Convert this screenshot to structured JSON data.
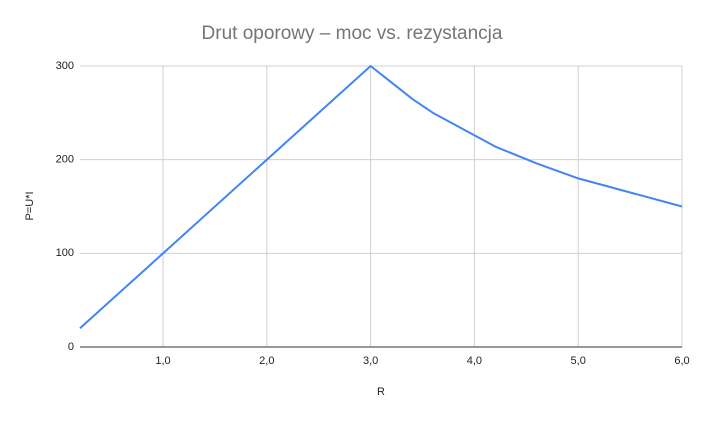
{
  "chart_data": {
    "type": "line",
    "title": "Drut oporowy – moc vs. rezystancja",
    "x_label": "R",
    "y_label": "P=U*I",
    "x": [
      0.2,
      3.0,
      3.4,
      3.6,
      4.2,
      4.6,
      4.8,
      5.0,
      6.0
    ],
    "series": [
      {
        "name": "P=U*I",
        "color": "#4285f4",
        "values": [
          20,
          300,
          265,
          250,
          214,
          196,
          188,
          180,
          150
        ]
      }
    ],
    "xlim": [
      0.2,
      6.0
    ],
    "xticks": [
      {
        "value": 1,
        "label": "1,0"
      },
      {
        "value": 2,
        "label": "2,0"
      },
      {
        "value": 3,
        "label": "3,0"
      },
      {
        "value": 4,
        "label": "4,0"
      },
      {
        "value": 5,
        "label": "5,0"
      },
      {
        "value": 6,
        "label": "6,0"
      }
    ],
    "ylim": [
      0,
      300
    ],
    "yticks": [
      0,
      100,
      200,
      300
    ],
    "grid": true
  }
}
